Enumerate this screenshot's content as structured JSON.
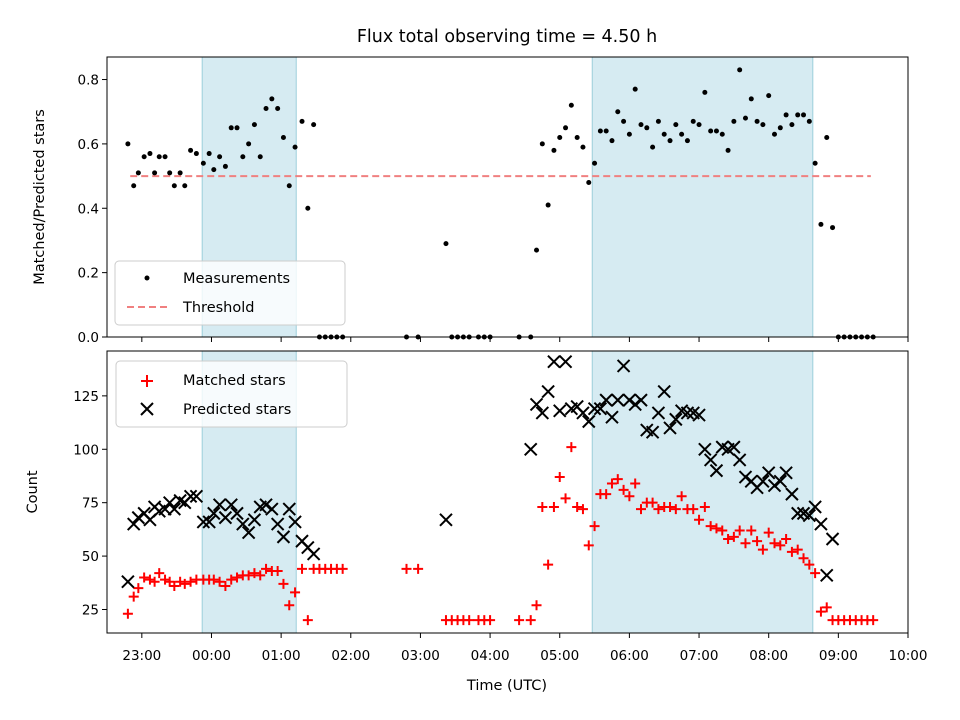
{
  "title": "Flux total observing time = 4.50 h",
  "chart_data": [
    {
      "type": "scatter",
      "ylabel": "Matched/Predicted stars",
      "xlabel": "",
      "xlim": [
        "22:30",
        "10:00"
      ],
      "ylim": [
        0,
        0.87
      ],
      "yticks": [
        0.0,
        0.2,
        0.4,
        0.6,
        0.8
      ],
      "ytick_labels": [
        "0.0",
        "0.2",
        "0.4",
        "0.6",
        "0.8"
      ],
      "legend_position": "lower-left",
      "shaded_intervals": [
        [
          "23:52",
          "01:13"
        ],
        [
          "05:28",
          "08:38"
        ]
      ],
      "threshold": {
        "name": "Threshold",
        "value": 0.5,
        "x": [
          "22:50",
          "09:28"
        ],
        "color": "#f08080"
      },
      "series": [
        {
          "name": "Measurements",
          "color": "#000000",
          "x": [
            "22:48",
            "22:53",
            "22:57",
            "23:02",
            "23:07",
            "23:11",
            "23:15",
            "23:20",
            "23:24",
            "23:28",
            "23:33",
            "23:37",
            "23:42",
            "23:47",
            "23:53",
            "23:58",
            "24:02",
            "24:07",
            "24:12",
            "24:17",
            "24:22",
            "24:27",
            "24:32",
            "24:37",
            "24:42",
            "24:47",
            "24:52",
            "24:57",
            "25:02",
            "25:07",
            "25:12",
            "25:18",
            "25:23",
            "25:28",
            "25:33",
            "25:38",
            "25:43",
            "25:48",
            "25:53",
            "26:48",
            "26:58",
            "27:22",
            "27:27",
            "27:32",
            "27:37",
            "27:42",
            "27:50",
            "27:55",
            "28:00",
            "28:25",
            "28:35",
            "28:40",
            "28:45",
            "28:50",
            "28:55",
            "29:00",
            "29:05",
            "29:10",
            "29:15",
            "29:20",
            "29:25",
            "29:30",
            "29:35",
            "29:40",
            "29:45",
            "29:50",
            "29:55",
            "30:00",
            "30:05",
            "30:10",
            "30:15",
            "30:20",
            "30:25",
            "30:30",
            "30:35",
            "30:40",
            "30:45",
            "30:50",
            "30:55",
            "31:00",
            "31:05",
            "31:10",
            "31:15",
            "31:20",
            "31:25",
            "31:30",
            "31:35",
            "31:40",
            "31:45",
            "31:50",
            "31:55",
            "32:00",
            "32:05",
            "32:10",
            "32:15",
            "32:20",
            "32:25",
            "32:30",
            "32:35",
            "32:40",
            "32:45",
            "32:50",
            "32:55",
            "33:00",
            "33:05",
            "33:10",
            "33:15",
            "33:20",
            "33:25",
            "33:30"
          ],
          "y": [
            0.6,
            0.47,
            0.51,
            0.56,
            0.57,
            0.51,
            0.56,
            0.56,
            0.51,
            0.47,
            0.51,
            0.47,
            0.58,
            0.57,
            0.54,
            0.57,
            0.52,
            0.56,
            0.53,
            0.65,
            0.65,
            0.56,
            0.6,
            0.66,
            0.56,
            0.71,
            0.74,
            0.71,
            0.62,
            0.47,
            0.59,
            0.67,
            0.4,
            0.66,
            0.0,
            0.0,
            0.0,
            0.0,
            0.0,
            0.0,
            0.0,
            0.29,
            0.0,
            0.0,
            0.0,
            0.0,
            0.0,
            0.0,
            0.0,
            0.0,
            0.0,
            0.27,
            0.6,
            0.41,
            0.58,
            0.62,
            0.65,
            0.72,
            0.62,
            0.59,
            0.48,
            0.54,
            0.64,
            0.64,
            0.61,
            0.7,
            0.67,
            0.63,
            0.77,
            0.66,
            0.65,
            0.59,
            0.67,
            0.63,
            0.61,
            0.66,
            0.63,
            0.61,
            0.67,
            0.66,
            0.76,
            0.64,
            0.64,
            0.63,
            0.58,
            0.67,
            0.83,
            0.68,
            0.74,
            0.67,
            0.66,
            0.75,
            0.63,
            0.65,
            0.69,
            0.66,
            0.69,
            0.69,
            0.67,
            0.54,
            0.35,
            0.62,
            0.34,
            0.0,
            0.0,
            0.0,
            0.0,
            0.0,
            0.0,
            0.0
          ]
        }
      ]
    },
    {
      "type": "scatter",
      "ylabel": "Count",
      "xlabel": "Time (UTC)",
      "xlim": [
        "22:30",
        "10:00"
      ],
      "ylim": [
        14,
        146
      ],
      "yticks": [
        25,
        50,
        75,
        100,
        125
      ],
      "ytick_labels": [
        "25",
        "50",
        "75",
        "100",
        "125"
      ],
      "xticks": [
        "23:00",
        "00:00",
        "01:00",
        "02:00",
        "03:00",
        "04:00",
        "05:00",
        "06:00",
        "07:00",
        "08:00",
        "09:00",
        "10:00"
      ],
      "legend_position": "upper-left",
      "shaded_intervals": [
        [
          "23:52",
          "01:13"
        ],
        [
          "05:28",
          "08:38"
        ]
      ],
      "series": [
        {
          "name": "Matched stars",
          "color": "#ff0000",
          "x": [
            "22:48",
            "22:53",
            "22:57",
            "23:02",
            "23:07",
            "23:11",
            "23:15",
            "23:20",
            "23:24",
            "23:28",
            "23:33",
            "23:37",
            "23:42",
            "23:47",
            "23:53",
            "23:58",
            "24:02",
            "24:07",
            "24:12",
            "24:17",
            "24:22",
            "24:27",
            "24:32",
            "24:37",
            "24:42",
            "24:47",
            "24:52",
            "24:57",
            "25:02",
            "25:07",
            "25:12",
            "25:18",
            "25:23",
            "25:28",
            "25:33",
            "25:38",
            "25:43",
            "25:48",
            "25:53",
            "26:48",
            "26:58",
            "27:22",
            "27:27",
            "27:32",
            "27:37",
            "27:42",
            "27:50",
            "27:55",
            "28:00",
            "28:25",
            "28:35",
            "28:40",
            "28:45",
            "28:50",
            "28:55",
            "29:00",
            "29:05",
            "29:10",
            "29:15",
            "29:20",
            "29:25",
            "29:30",
            "29:35",
            "29:40",
            "29:45",
            "29:50",
            "29:55",
            "30:00",
            "30:05",
            "30:10",
            "30:15",
            "30:20",
            "30:25",
            "30:30",
            "30:35",
            "30:40",
            "30:45",
            "30:50",
            "30:55",
            "31:00",
            "31:05",
            "31:10",
            "31:15",
            "31:20",
            "31:25",
            "31:30",
            "31:35",
            "31:40",
            "31:45",
            "31:50",
            "31:55",
            "32:00",
            "32:05",
            "32:10",
            "32:15",
            "32:20",
            "32:25",
            "32:30",
            "32:35",
            "32:40",
            "32:45",
            "32:50",
            "32:55",
            "33:00",
            "33:05",
            "33:10",
            "33:15",
            "33:20",
            "33:25",
            "33:30"
          ],
          "y": [
            23,
            31,
            35,
            40,
            39,
            38,
            42,
            39,
            38,
            36,
            38,
            37,
            38,
            39,
            39,
            39,
            39,
            38,
            36,
            39,
            40,
            41,
            41,
            42,
            41,
            44,
            43,
            43,
            37,
            27,
            33,
            44,
            20,
            44,
            44,
            44,
            44,
            44,
            44,
            44,
            44,
            20,
            20,
            20,
            20,
            20,
            20,
            20,
            20,
            20,
            20,
            27,
            73,
            46,
            73,
            87,
            77,
            101,
            73,
            72,
            55,
            64,
            79,
            79,
            84,
            86,
            81,
            78,
            84,
            72,
            75,
            75,
            72,
            73,
            73,
            72,
            78,
            72,
            72,
            67,
            73,
            64,
            63,
            62,
            58,
            59,
            62,
            56,
            62,
            57,
            53,
            61,
            56,
            55,
            58,
            52,
            53,
            49,
            46,
            42,
            24,
            26,
            20,
            20,
            20,
            20,
            20,
            20,
            20,
            20
          ]
        },
        {
          "name": "Predicted stars",
          "color": "#000000",
          "x": [
            "22:48",
            "22:53",
            "22:57",
            "23:02",
            "23:07",
            "23:11",
            "23:15",
            "23:20",
            "23:24",
            "23:28",
            "23:33",
            "23:37",
            "23:42",
            "23:47",
            "23:53",
            "23:58",
            "24:02",
            "24:07",
            "24:12",
            "24:17",
            "24:22",
            "24:27",
            "24:32",
            "24:37",
            "24:42",
            "24:47",
            "24:52",
            "24:57",
            "25:02",
            "25:07",
            "25:12",
            "25:18",
            "25:23",
            "25:28",
            "27:22",
            "28:35",
            "28:40",
            "28:45",
            "28:50",
            "28:55",
            "29:00",
            "29:05",
            "29:10",
            "29:15",
            "29:20",
            "29:25",
            "29:30",
            "29:35",
            "29:40",
            "29:45",
            "29:50",
            "29:55",
            "30:00",
            "30:05",
            "30:10",
            "30:15",
            "30:20",
            "30:25",
            "30:30",
            "30:35",
            "30:40",
            "30:45",
            "30:50",
            "30:55",
            "31:00",
            "31:05",
            "31:10",
            "31:15",
            "31:20",
            "31:25",
            "31:30",
            "31:35",
            "31:40",
            "31:45",
            "31:50",
            "31:55",
            "32:00",
            "32:05",
            "32:10",
            "32:15",
            "32:20",
            "32:25",
            "32:30",
            "32:35",
            "32:40",
            "32:45",
            "32:50",
            "32:55"
          ],
          "y": [
            38,
            65,
            68,
            70,
            67,
            73,
            71,
            72,
            75,
            72,
            76,
            75,
            78,
            78,
            66,
            66,
            70,
            74,
            68,
            74,
            70,
            65,
            61,
            67,
            73,
            74,
            72,
            65,
            59,
            72,
            66,
            57,
            54,
            51,
            67,
            100,
            121,
            117,
            127,
            141,
            118,
            141,
            119,
            120,
            117,
            113,
            119,
            119,
            123,
            115,
            123,
            139,
            123,
            121,
            123,
            109,
            108,
            117,
            127,
            110,
            114,
            118,
            117,
            117,
            116,
            100,
            95,
            90,
            101,
            100,
            101,
            95,
            87,
            85,
            82,
            85,
            89,
            83,
            85,
            89,
            79,
            70,
            70,
            69,
            73,
            65,
            41,
            58
          ]
        }
      ]
    }
  ]
}
